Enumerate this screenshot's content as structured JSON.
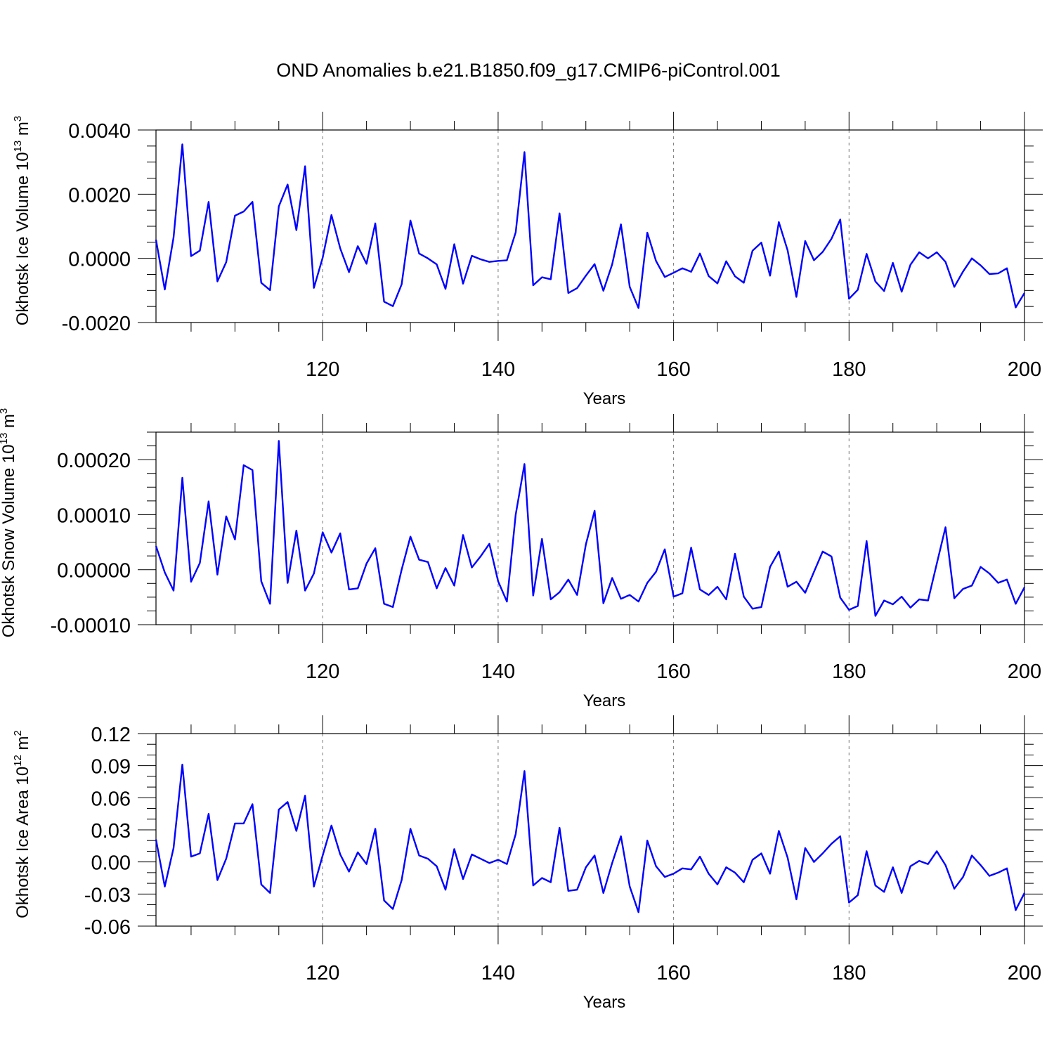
{
  "title": "OND Anomalies b.e21.B1850.f09_g17.CMIP6-piControl.001",
  "colors": {
    "line": "#0000ff",
    "grid": "#777777"
  },
  "chart_data": [
    {
      "type": "line",
      "xlabel": "Years",
      "ylabel": "Okhotsk Ice Volume 10",
      "ylabel_sup": "13",
      "ylabel_unit": " m",
      "ylabel_unit_sup": "3",
      "xlim": [
        101,
        200
      ],
      "ylim": [
        -0.002,
        0.004
      ],
      "xticks": [
        120,
        140,
        160,
        180,
        200
      ],
      "yticks": [
        -0.002,
        0.0,
        0.002,
        0.004
      ],
      "ytick_labels": [
        "-0.0020",
        "0.0000",
        "0.0020",
        "0.0040"
      ],
      "x_minor_step": 5,
      "y_minor_step": 0.0005,
      "grid_x": [
        120,
        140,
        160,
        180
      ],
      "x_start": 101,
      "values": [
        0.00058,
        -0.00097,
        0.00065,
        0.00355,
        7e-05,
        0.00024,
        0.00176,
        -0.00072,
        -0.00012,
        0.00133,
        0.00146,
        0.00176,
        -0.00076,
        -0.00099,
        0.00162,
        0.0023,
        0.00088,
        0.00287,
        -0.00092,
        2e-05,
        0.00135,
        0.00031,
        -0.00043,
        0.00038,
        -0.00017,
        0.00109,
        -0.00135,
        -0.00149,
        -0.00081,
        0.00118,
        0.00015,
        0.0,
        -0.00019,
        -0.00095,
        0.00044,
        -0.00079,
        8e-05,
        -3e-05,
        -0.00011,
        -8e-05,
        -6e-05,
        0.00081,
        0.00331,
        -0.00084,
        -0.00059,
        -0.00065,
        0.0014,
        -0.00108,
        -0.00093,
        -0.00054,
        -0.00018,
        -0.00101,
        -0.00019,
        0.00106,
        -0.00089,
        -0.00155,
        0.0008,
        -8e-05,
        -0.00058,
        -0.00045,
        -0.00031,
        -0.00042,
        0.00015,
        -0.00055,
        -0.00078,
        -9e-05,
        -0.00056,
        -0.00076,
        0.00024,
        0.00049,
        -0.00054,
        0.00113,
        0.00025,
        -0.0012,
        0.00054,
        -6e-05,
        0.0002,
        0.00061,
        0.00121,
        -0.00126,
        -0.00098,
        0.00014,
        -0.00072,
        -0.00102,
        -0.00014,
        -0.00104,
        -0.0002,
        0.00019,
        0.0,
        0.00019,
        -0.00011,
        -0.00089,
        -0.00041,
        0.0,
        -0.00022,
        -0.00049,
        -0.00047,
        -0.00031,
        -0.00153,
        -0.00108
      ]
    },
    {
      "type": "line",
      "xlabel": "Years",
      "ylabel": "Okhotsk Snow Volume 10",
      "ylabel_sup": "13",
      "ylabel_unit": " m",
      "ylabel_unit_sup": "3",
      "xlim": [
        101,
        200
      ],
      "ylim": [
        -0.0001,
        0.00025
      ],
      "xticks": [
        120,
        140,
        160,
        180,
        200
      ],
      "yticks": [
        -0.0001,
        0.0,
        0.0001,
        0.0002
      ],
      "ytick_labels": [
        "-0.00010",
        "0.00000",
        "0.00010",
        "0.00020"
      ],
      "x_minor_step": 5,
      "y_minor_step": 2.5e-05,
      "grid_x": [
        120,
        140,
        160,
        180
      ],
      "x_start": 101,
      "values": [
        4.3e-05,
        -5e-06,
        -3.8e-05,
        0.000167,
        -2.2e-05,
        1.2e-05,
        0.000124,
        -9e-06,
        9.7e-05,
        5.5e-05,
        0.00019,
        0.000181,
        -2.1e-05,
        -6.2e-05,
        0.000234,
        -2.4e-05,
        7.1e-05,
        -3.8e-05,
        -7e-06,
        6.8e-05,
        3.1e-05,
        6.6e-05,
        -3.6e-05,
        -3.4e-05,
        1.1e-05,
        3.9e-05,
        -6.2e-05,
        -6.8e-05,
        0.0,
        6e-05,
        1.8e-05,
        1.4e-05,
        -3.4e-05,
        3e-06,
        -2.9e-05,
        6.3e-05,
        4e-06,
        2.4e-05,
        4.7e-05,
        -2.1e-05,
        -5.8e-05,
        0.0001,
        0.000192,
        -4.7e-05,
        5.6e-05,
        -5.4e-05,
        -4.1e-05,
        -1.8e-05,
        -4.6e-05,
        4.6e-05,
        0.000107,
        -6.1e-05,
        -1.5e-05,
        -5.3e-05,
        -4.6e-05,
        -5.8e-05,
        -2.4e-05,
        -4e-06,
        3.7e-05,
        -4.9e-05,
        -4.3e-05,
        4e-05,
        -3.6e-05,
        -4.6e-05,
        -3.1e-05,
        -5.4e-05,
        2.9e-05,
        -4.9e-05,
        -7.1e-05,
        -6.8e-05,
        5e-06,
        3.3e-05,
        -3.1e-05,
        -2.2e-05,
        -4.2e-05,
        -4e-06,
        3.3e-05,
        2.4e-05,
        -5.1e-05,
        -7.3e-05,
        -6.6e-05,
        5.2e-05,
        -8.4e-05,
        -5.6e-05,
        -6.3e-05,
        -4.9e-05,
        -6.9e-05,
        -5.4e-05,
        -5.6e-05,
        1.1e-05,
        7.7e-05,
        -5.2e-05,
        -3.5e-05,
        -2.9e-05,
        5e-06,
        -7e-06,
        -2.4e-05,
        -1.8e-05,
        -6.2e-05,
        -3.2e-05
      ]
    },
    {
      "type": "line",
      "xlabel": "Years",
      "ylabel": "Okhotsk Ice Area 10",
      "ylabel_sup": "12",
      "ylabel_unit": " m",
      "ylabel_unit_sup": "2",
      "xlim": [
        101,
        200
      ],
      "ylim": [
        -0.06,
        0.12
      ],
      "xticks": [
        120,
        140,
        160,
        180,
        200
      ],
      "yticks": [
        -0.06,
        -0.03,
        0.0,
        0.03,
        0.06,
        0.09,
        0.12
      ],
      "ytick_labels": [
        "-0.06",
        "-0.03",
        "0.00",
        "0.03",
        "0.06",
        "0.09",
        "0.12"
      ],
      "x_minor_step": 5,
      "y_minor_step": 0.01,
      "grid_x": [
        120,
        140,
        160,
        180
      ],
      "x_start": 101,
      "values": [
        0.021,
        -0.023,
        0.013,
        0.091,
        0.005,
        0.008,
        0.045,
        -0.017,
        0.003,
        0.036,
        0.036,
        0.054,
        -0.021,
        -0.029,
        0.049,
        0.056,
        0.029,
        0.062,
        -0.023,
        0.006,
        0.034,
        0.007,
        -0.009,
        0.009,
        -0.002,
        0.031,
        -0.036,
        -0.044,
        -0.017,
        0.031,
        0.006,
        0.003,
        -0.004,
        -0.026,
        0.012,
        -0.016,
        0.007,
        0.003,
        -0.001,
        0.002,
        -0.002,
        0.026,
        0.085,
        -0.022,
        -0.015,
        -0.019,
        0.032,
        -0.027,
        -0.026,
        -0.005,
        0.006,
        -0.029,
        -0.001,
        0.024,
        -0.023,
        -0.047,
        0.02,
        -0.004,
        -0.014,
        -0.011,
        -0.006,
        -0.007,
        0.005,
        -0.011,
        -0.021,
        -0.005,
        -0.01,
        -0.019,
        0.002,
        0.008,
        -0.011,
        0.029,
        0.004,
        -0.035,
        0.013,
        0.0,
        0.008,
        0.017,
        0.024,
        -0.038,
        -0.031,
        0.01,
        -0.022,
        -0.028,
        -0.005,
        -0.029,
        -0.004,
        0.001,
        -0.002,
        0.01,
        -0.003,
        -0.025,
        -0.014,
        0.006,
        -0.003,
        -0.013,
        -0.01,
        -0.006,
        -0.045,
        -0.029
      ]
    }
  ]
}
